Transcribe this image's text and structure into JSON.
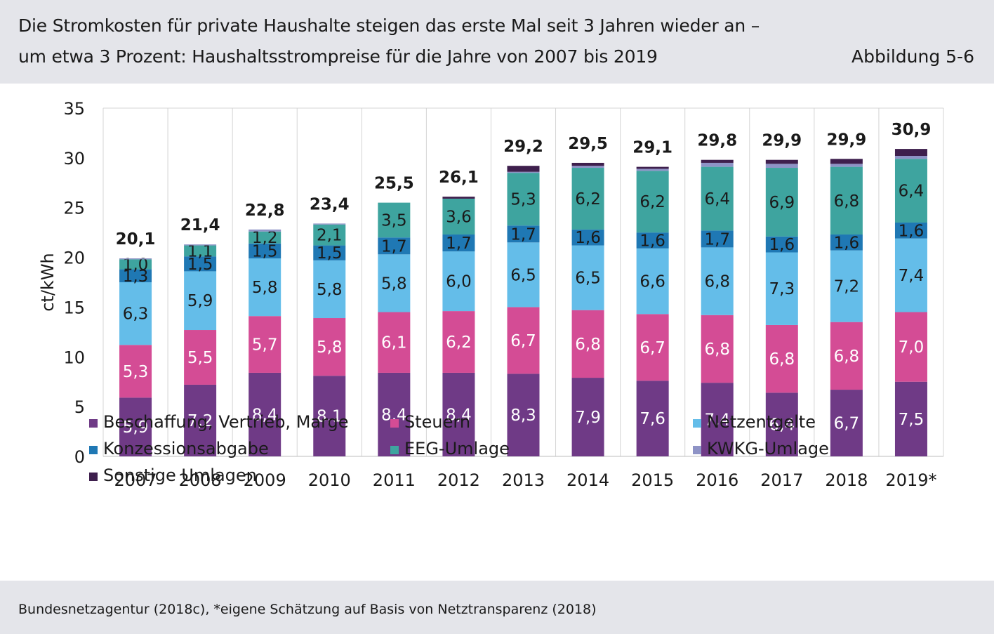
{
  "header": {
    "title_line1": "Die Stromkosten für private Haushalte steigen das erste Mal seit 3 Jahren wieder an –",
    "title_line2": "um etwa 3 Prozent: Haushaltsstrompreise für die Jahre von 2007 bis 2019",
    "figure_label": "Abbildung 5-6"
  },
  "footer": {
    "source": "Bundesnetzagentur (2018c), *eigene Schätzung auf Basis von Netztransparenz (2018)"
  },
  "chart_data": {
    "type": "bar",
    "stacked": true,
    "ylabel": "ct/kWh",
    "ylim": [
      0,
      35
    ],
    "yticks": [
      0,
      5,
      10,
      15,
      20,
      25,
      30,
      35
    ],
    "grid": "vertical",
    "legend_position": "bottom",
    "categories": [
      "2007",
      "2008",
      "2009",
      "2010",
      "2011",
      "2012",
      "2013",
      "2014",
      "2015",
      "2016",
      "2017",
      "2018",
      "2019*"
    ],
    "totals": [
      "20,1",
      "21,4",
      "22,8",
      "23,4",
      "25,5",
      "26,1",
      "29,2",
      "29,5",
      "29,1",
      "29,8",
      "29,9",
      "29,9",
      "30,9"
    ],
    "series": [
      {
        "name": "Beschaffung, Vertrieb, Marge",
        "color": "#6f3a86",
        "label_color": "#ffffff",
        "values": [
          5.9,
          7.2,
          8.4,
          8.1,
          8.4,
          8.4,
          8.3,
          7.9,
          7.6,
          7.4,
          6.4,
          6.7,
          7.5
        ],
        "labels": [
          "5,9",
          "7,2",
          "8,4",
          "8,1",
          "8,4",
          "8,4",
          "8,3",
          "7,9",
          "7,6",
          "7,4",
          "6,4",
          "6,7",
          "7,5"
        ]
      },
      {
        "name": "Steuern",
        "color": "#d44c95",
        "label_color": "#ffffff",
        "values": [
          5.3,
          5.5,
          5.7,
          5.8,
          6.1,
          6.2,
          6.7,
          6.8,
          6.7,
          6.8,
          6.8,
          6.8,
          7.0
        ],
        "labels": [
          "5,3",
          "5,5",
          "5,7",
          "5,8",
          "6,1",
          "6,2",
          "6,7",
          "6,8",
          "6,7",
          "6,8",
          "6,8",
          "6,8",
          "7,0"
        ]
      },
      {
        "name": "Netzentgelte",
        "color": "#64bde9",
        "label_color": "#1a1a1a",
        "values": [
          6.3,
          5.9,
          5.8,
          5.8,
          5.8,
          6.0,
          6.5,
          6.5,
          6.6,
          6.8,
          7.3,
          7.2,
          7.4
        ],
        "labels": [
          "6,3",
          "5,9",
          "5,8",
          "5,8",
          "5,8",
          "6,0",
          "6,5",
          "6,5",
          "6,6",
          "6,8",
          "7,3",
          "7,2",
          "7,4"
        ]
      },
      {
        "name": "Konzessionsabgabe",
        "color": "#1f78b4",
        "label_color": "#1a1a1a",
        "values": [
          1.3,
          1.5,
          1.5,
          1.5,
          1.7,
          1.7,
          1.7,
          1.6,
          1.6,
          1.7,
          1.6,
          1.6,
          1.6
        ],
        "labels": [
          "1,3",
          "1,5",
          "1,5",
          "1,5",
          "1,7",
          "1,7",
          "1,7",
          "1,6",
          "1,6",
          "1,7",
          "1,6",
          "1,6",
          "1,6"
        ]
      },
      {
        "name": "EEG-Umlage",
        "color": "#3ea49f",
        "label_color": "#1a1a1a",
        "values": [
          1.0,
          1.1,
          1.2,
          2.1,
          3.5,
          3.6,
          5.3,
          6.2,
          6.2,
          6.4,
          6.9,
          6.8,
          6.4
        ],
        "labels": [
          "1,0",
          "1,1",
          "1,2",
          "2,1",
          "3,5",
          "3,6",
          "5,3",
          "6,2",
          "6,2",
          "6,4",
          "6,9",
          "6,8",
          "6,4"
        ]
      },
      {
        "name": "KWKG-Umlage",
        "color": "#8e93c6",
        "label_color": "#1a1a1a",
        "values": [
          0.1,
          0.1,
          0.2,
          0.1,
          0.0,
          0.0,
          0.1,
          0.2,
          0.2,
          0.4,
          0.4,
          0.3,
          0.3
        ],
        "labels": []
      },
      {
        "name": "Sonstige Umlagen",
        "color": "#3e1f4d",
        "label_color": "#ffffff",
        "values": [
          0.0,
          0.0,
          0.0,
          0.0,
          0.0,
          0.2,
          0.6,
          0.3,
          0.2,
          0.3,
          0.4,
          0.5,
          0.7
        ],
        "labels": []
      }
    ]
  }
}
